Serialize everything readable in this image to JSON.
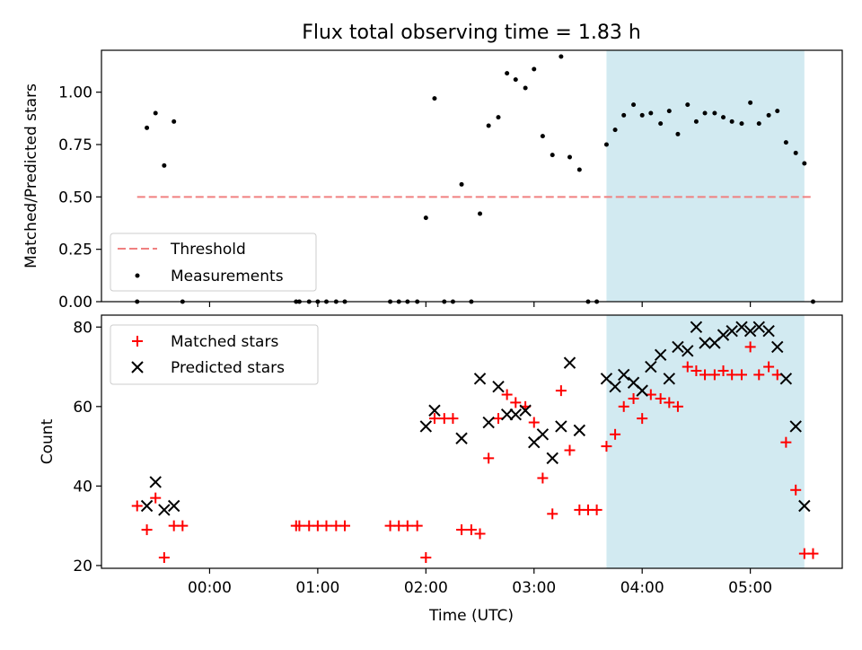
{
  "chart_data": [
    {
      "type": "scatter",
      "title": "Flux total observing time = 1.83 h",
      "xlabel": "",
      "ylabel": "Matched/Predicted stars",
      "xlim_hours": [
        -1.0,
        5.85
      ],
      "ylim": [
        0,
        1.2
      ],
      "yticks": [
        0.0,
        0.25,
        0.5,
        0.75,
        1.0
      ],
      "ytick_labels": [
        "0.00",
        "0.25",
        "0.50",
        "0.75",
        "1.00"
      ],
      "highlight_span_hours": [
        3.67,
        5.5
      ],
      "highlight_color": "#add8e6",
      "threshold": {
        "name": "Threshold",
        "value": 0.5,
        "x_range_hours": [
          -0.67,
          5.58
        ],
        "color": "#f08080",
        "style": "dashed"
      },
      "measurements": {
        "name": "Measurements",
        "color": "#000000",
        "x": [
          -0.67,
          -0.58,
          -0.5,
          -0.42,
          -0.33,
          -0.25,
          0.8,
          0.83,
          0.92,
          1.0,
          1.08,
          1.17,
          1.25,
          1.67,
          1.75,
          1.83,
          1.92,
          2.0,
          2.08,
          2.17,
          2.25,
          2.33,
          2.42,
          2.5,
          2.58,
          2.67,
          2.75,
          2.83,
          2.92,
          3.0,
          3.08,
          3.17,
          3.25,
          3.33,
          3.42,
          3.5,
          3.58,
          3.67,
          3.75,
          3.83,
          3.92,
          4.0,
          4.08,
          4.17,
          4.25,
          4.33,
          4.42,
          4.5,
          4.58,
          4.67,
          4.75,
          4.83,
          4.92,
          5.0,
          5.08,
          5.17,
          5.25,
          5.33,
          5.42,
          5.5,
          5.58
        ],
        "y": [
          0,
          0.83,
          0.9,
          0.65,
          0.86,
          0,
          0,
          0,
          0,
          0,
          0,
          0,
          0,
          0,
          0,
          0,
          0,
          0.4,
          0.97,
          0,
          0,
          0.56,
          0,
          0.42,
          0.84,
          0.88,
          1.09,
          1.06,
          1.02,
          1.11,
          0.79,
          0.7,
          1.17,
          0.69,
          0.63,
          0,
          0,
          0.75,
          0.82,
          0.89,
          0.94,
          0.89,
          0.9,
          0.85,
          0.91,
          0.8,
          0.94,
          0.86,
          0.9,
          0.9,
          0.88,
          0.86,
          0.85,
          0.95,
          0.85,
          0.89,
          0.91,
          0.76,
          0.71,
          0.66,
          0
        ]
      },
      "legend": {
        "position": "lower left",
        "entries": [
          "Threshold",
          "Measurements"
        ]
      }
    },
    {
      "type": "scatter",
      "title": "",
      "xlabel": "Time (UTC)",
      "ylabel": "Count",
      "xlim_hours": [
        -1.0,
        5.85
      ],
      "ylim": [
        19.3,
        83
      ],
      "yticks": [
        20,
        40,
        60,
        80
      ],
      "ytick_labels": [
        "20",
        "40",
        "60",
        "80"
      ],
      "xticks_hours": [
        0,
        1,
        2,
        3,
        4,
        5
      ],
      "xtick_labels": [
        "00:00",
        "01:00",
        "02:00",
        "03:00",
        "04:00",
        "05:00"
      ],
      "highlight_span_hours": [
        3.67,
        5.5
      ],
      "highlight_color": "#add8e6",
      "series": [
        {
          "name": "Matched stars",
          "marker": "+",
          "color": "#ff0000",
          "x": [
            -0.67,
            -0.58,
            -0.5,
            -0.42,
            -0.33,
            -0.25,
            0.8,
            0.83,
            0.92,
            1.0,
            1.08,
            1.17,
            1.25,
            1.67,
            1.75,
            1.83,
            1.92,
            2.0,
            2.08,
            2.17,
            2.25,
            2.33,
            2.42,
            2.5,
            2.58,
            2.67,
            2.75,
            2.83,
            2.92,
            3.0,
            3.08,
            3.17,
            3.25,
            3.33,
            3.42,
            3.5,
            3.58,
            3.67,
            3.75,
            3.83,
            3.92,
            4.0,
            4.08,
            4.17,
            4.25,
            4.33,
            4.42,
            4.5,
            4.58,
            4.67,
            4.75,
            4.83,
            4.92,
            5.0,
            5.08,
            5.17,
            5.25,
            5.33,
            5.42,
            5.5,
            5.58
          ],
          "y": [
            35,
            29,
            37,
            22,
            30,
            30,
            30,
            30,
            30,
            30,
            30,
            30,
            30,
            30,
            30,
            30,
            30,
            22,
            57,
            57,
            57,
            29,
            29,
            28,
            47,
            57,
            63,
            61,
            60,
            56,
            42,
            33,
            64,
            49,
            34,
            34,
            34,
            50,
            53,
            60,
            62,
            57,
            63,
            62,
            61,
            60,
            70,
            69,
            68,
            68,
            69,
            68,
            68,
            75,
            68,
            70,
            68,
            51,
            39,
            23,
            23
          ]
        },
        {
          "name": "Predicted stars",
          "marker": "x",
          "color": "#000000",
          "x": [
            -0.58,
            -0.5,
            -0.42,
            -0.33,
            2.0,
            2.08,
            2.33,
            2.5,
            2.58,
            2.67,
            2.75,
            2.83,
            2.92,
            3.0,
            3.08,
            3.17,
            3.25,
            3.33,
            3.42,
            3.67,
            3.75,
            3.83,
            3.92,
            4.0,
            4.08,
            4.17,
            4.25,
            4.33,
            4.42,
            4.5,
            4.58,
            4.67,
            4.75,
            4.83,
            4.92,
            5.0,
            5.08,
            5.17,
            5.25,
            5.33,
            5.42,
            5.5
          ],
          "y": [
            35,
            41,
            34,
            35,
            55,
            59,
            52,
            67,
            56,
            65,
            58,
            58,
            59,
            51,
            53,
            47,
            55,
            71,
            54,
            67,
            65,
            68,
            66,
            64,
            70,
            73,
            67,
            75,
            74,
            80,
            76,
            76,
            78,
            79,
            80,
            79,
            80,
            79,
            75,
            67,
            55,
            35
          ]
        }
      ],
      "legend": {
        "position": "upper left",
        "entries": [
          "Matched stars",
          "Predicted stars"
        ]
      }
    }
  ]
}
